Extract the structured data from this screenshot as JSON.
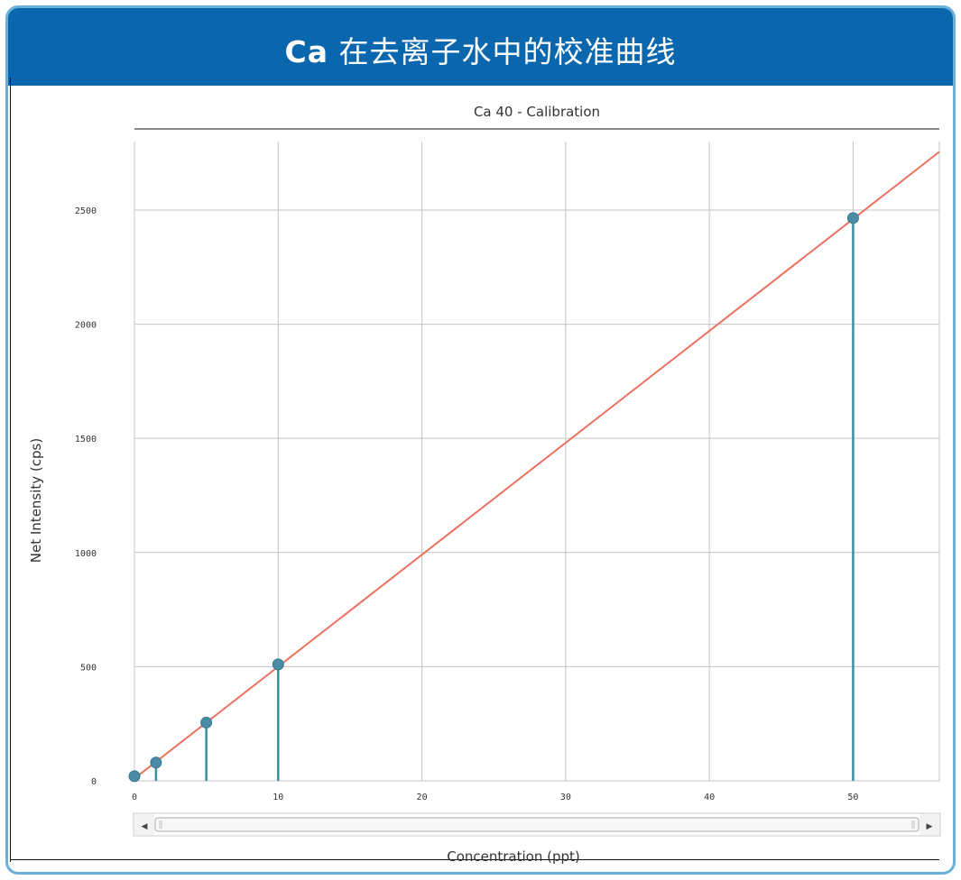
{
  "banner": {
    "element": "Ca",
    "title_rest": " 在去离子水中的校准曲线",
    "bg_color": "#0a66ad"
  },
  "chart_data": {
    "type": "scatter",
    "title": "Ca 40   -   Calibration",
    "xlabel": "Concentration (ppt)",
    "ylabel": "Net Intensity (cps)",
    "xlim": [
      0,
      56
    ],
    "ylim": [
      0,
      2800
    ],
    "xticks": [
      0,
      10,
      20,
      30,
      40,
      50
    ],
    "yticks": [
      0,
      500,
      1000,
      1500,
      2000,
      2500
    ],
    "grid": true,
    "points": [
      {
        "x": 0,
        "y": 20
      },
      {
        "x": 1.5,
        "y": 80
      },
      {
        "x": 5,
        "y": 255
      },
      {
        "x": 10,
        "y": 510
      },
      {
        "x": 50,
        "y": 2465
      }
    ],
    "fit_line": {
      "x": [
        0,
        56
      ],
      "y": [
        10,
        2755
      ]
    },
    "colors": {
      "points": "#4a8ba6",
      "stems": "#3d8ea3",
      "fit": "#ee7060",
      "grid": "#c4c4c4"
    }
  },
  "scrollbar": {
    "left_arrow": "◀",
    "right_arrow": "▶"
  }
}
